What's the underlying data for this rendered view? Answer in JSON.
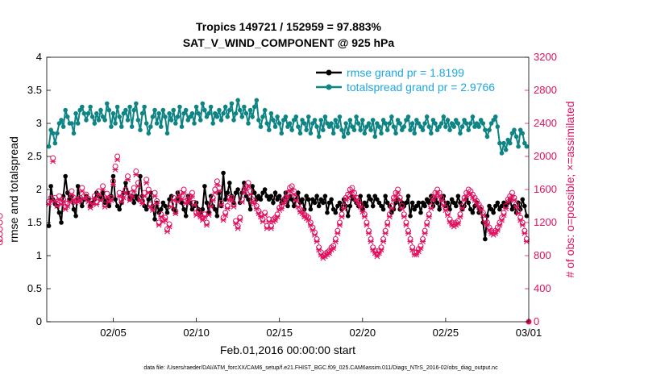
{
  "chart_data": {
    "type": "line",
    "title": "Tropics 149721 / 152959 = 97.883%",
    "subtitle": "SAT_V_WIND_COMPONENT @ 925 hPa",
    "xlabel": "Feb.01,2016 00:00:00 start",
    "ylabel": "rmse and totalspread",
    "y2label": "# of obs: o=possible; ×=assimilated",
    "footer": "data file: /Users/raeder/DAI/ATM_forcXX/CAM6_setup/f.e21.FHIST_BGC.f09_025.CAM6assim.011/Diags_NTrS_2016-02/obs_diag_output.nc",
    "xlim": [
      1,
      30
    ],
    "ylim": [
      0,
      4
    ],
    "y2lim": [
      0,
      3200
    ],
    "xticks": [
      5,
      10,
      15,
      20,
      25,
      30
    ],
    "xtick_labels": [
      "02/05",
      "02/10",
      "02/15",
      "02/20",
      "02/25",
      "03/01"
    ],
    "yticks": [
      0,
      0.5,
      1,
      1.5,
      2,
      2.5,
      3,
      3.5,
      4
    ],
    "ytick_labels": [
      "0",
      "0.5",
      "1",
      "1.5",
      "2",
      "2.5",
      "3",
      "3.5",
      "4"
    ],
    "y2ticks": [
      0,
      400,
      800,
      1200,
      1600,
      2000,
      2400,
      2800,
      3200
    ],
    "y2tick_labels": [
      "0",
      "400",
      "800",
      "1200",
      "1600",
      "2000",
      "2400",
      "2800",
      "3200"
    ],
    "x": [
      1.125,
      1.25,
      1.375,
      1.5,
      1.625,
      1.75,
      1.875,
      2.0,
      2.125,
      2.25,
      2.375,
      2.5,
      2.625,
      2.75,
      2.875,
      3.0,
      3.125,
      3.25,
      3.375,
      3.5,
      3.625,
      3.75,
      3.875,
      4.0,
      4.125,
      4.25,
      4.375,
      4.5,
      4.625,
      4.75,
      4.875,
      5.0,
      5.125,
      5.25,
      5.375,
      5.5,
      5.625,
      5.75,
      5.875,
      6.0,
      6.125,
      6.25,
      6.375,
      6.5,
      6.625,
      6.75,
      6.875,
      7.0,
      7.125,
      7.25,
      7.375,
      7.5,
      7.625,
      7.75,
      7.875,
      8.0,
      8.125,
      8.25,
      8.375,
      8.5,
      8.625,
      8.75,
      8.875,
      9.0,
      9.125,
      9.25,
      9.375,
      9.5,
      9.625,
      9.75,
      9.875,
      10.0,
      10.125,
      10.25,
      10.375,
      10.5,
      10.625,
      10.75,
      10.875,
      11.0,
      11.125,
      11.25,
      11.375,
      11.5,
      11.625,
      11.75,
      11.875,
      12.0,
      12.125,
      12.25,
      12.375,
      12.5,
      12.625,
      12.75,
      12.875,
      13.0,
      13.125,
      13.25,
      13.375,
      13.5,
      13.625,
      13.75,
      13.875,
      14.0,
      14.125,
      14.25,
      14.375,
      14.5,
      14.625,
      14.75,
      14.875,
      15.0,
      15.125,
      15.25,
      15.375,
      15.5,
      15.625,
      15.75,
      15.875,
      16.0,
      16.125,
      16.25,
      16.375,
      16.5,
      16.625,
      16.75,
      16.875,
      17.0,
      17.125,
      17.25,
      17.375,
      17.5,
      17.625,
      17.75,
      17.875,
      18.0,
      18.125,
      18.25,
      18.375,
      18.5,
      18.625,
      18.75,
      18.875,
      19.0,
      19.125,
      19.25,
      19.375,
      19.5,
      19.625,
      19.75,
      19.875,
      20.0,
      20.125,
      20.25,
      20.375,
      20.5,
      20.625,
      20.75,
      20.875,
      21.0,
      21.125,
      21.25,
      21.375,
      21.5,
      21.625,
      21.75,
      21.875,
      22.0,
      22.125,
      22.25,
      22.375,
      22.5,
      22.625,
      22.75,
      22.875,
      23.0,
      23.125,
      23.25,
      23.375,
      23.5,
      23.625,
      23.75,
      23.875,
      24.0,
      24.125,
      24.25,
      24.375,
      24.5,
      24.625,
      24.75,
      24.875,
      25.0,
      25.125,
      25.25,
      25.375,
      25.5,
      25.625,
      25.75,
      25.875,
      26.0,
      26.125,
      26.25,
      26.375,
      26.5,
      26.625,
      26.75,
      26.875,
      27.0,
      27.125,
      27.25,
      27.375,
      27.5,
      27.625,
      27.75,
      27.875,
      28.0,
      28.125,
      28.25,
      28.375,
      28.5,
      28.625,
      28.75,
      28.875,
      29.0,
      29.125,
      29.25,
      29.375,
      29.5,
      29.625,
      29.75,
      29.875
    ],
    "series": [
      {
        "name": "rmse grand pr = 1.8199",
        "color": "#000000",
        "axis": "left",
        "values": [
          1.45,
          2.05,
          1.85,
          1.78,
          1.75,
          1.65,
          1.5,
          1.9,
          2.2,
          1.95,
          1.85,
          1.9,
          1.7,
          1.6,
          2.05,
          1.85,
          1.75,
          1.85,
          1.9,
          1.85,
          1.75,
          1.8,
          1.85,
          1.95,
          1.9,
          1.85,
          1.95,
          1.8,
          1.85,
          1.75,
          1.9,
          2.2,
          1.85,
          1.75,
          1.7,
          1.8,
          1.95,
          2.1,
          1.95,
          1.85,
          1.9,
          1.8,
          1.9,
          1.85,
          2.2,
          1.9,
          1.75,
          1.7,
          1.85,
          1.95,
          1.75,
          1.55,
          1.8,
          1.65,
          1.7,
          1.8,
          1.75,
          1.65,
          1.85,
          1.9,
          1.7,
          1.65,
          1.95,
          1.85,
          1.8,
          1.7,
          1.6,
          1.9,
          1.8,
          1.7,
          1.75,
          1.8,
          1.7,
          1.65,
          1.7,
          2.05,
          1.8,
          1.65,
          1.9,
          1.75,
          1.7,
          1.6,
          1.95,
          1.75,
          2.25,
          1.85,
          1.95,
          2.1,
          1.9,
          1.8,
          1.95,
          2.0,
          1.8,
          1.95,
          2.1,
          1.9,
          1.85,
          1.7,
          2.05,
          1.95,
          1.85,
          1.9,
          1.85,
          1.95,
          2.0,
          1.9,
          1.85,
          1.9,
          1.8,
          1.95,
          1.85,
          1.9,
          1.8,
          1.85,
          1.95,
          1.75,
          1.9,
          1.85,
          1.75,
          1.85,
          1.95,
          1.8,
          1.85,
          1.7,
          1.9,
          1.85,
          1.7,
          1.85,
          1.8,
          1.9,
          1.75,
          1.85,
          1.8,
          1.9,
          1.65,
          1.8,
          1.85,
          1.7,
          1.65,
          1.75,
          1.8,
          1.7,
          1.85,
          1.75,
          1.6,
          1.75,
          1.9,
          1.85,
          1.8,
          1.75,
          1.9,
          1.7,
          1.8,
          1.75,
          1.9,
          1.85,
          1.75,
          1.9,
          1.85,
          1.8,
          1.75,
          1.7,
          1.9,
          1.8,
          1.75,
          1.65,
          1.7,
          1.8,
          1.85,
          1.7,
          1.8,
          1.75,
          1.8,
          1.9,
          1.6,
          1.8,
          1.7,
          1.75,
          1.8,
          1.65,
          1.8,
          1.75,
          1.85,
          1.8,
          1.9,
          1.75,
          1.85,
          1.8,
          1.7,
          1.85,
          1.9,
          1.75,
          1.8,
          1.7,
          1.85,
          1.8,
          1.75,
          1.9,
          1.8,
          1.7,
          1.75,
          1.85,
          1.8,
          1.7,
          1.65,
          1.75,
          1.8,
          1.65,
          1.7,
          1.5,
          1.25,
          1.6,
          1.75,
          1.7,
          1.65,
          1.75,
          1.8,
          1.7,
          1.75,
          1.8,
          1.75,
          1.8,
          1.85,
          1.7,
          1.75,
          1.65,
          1.8,
          1.7,
          1.85,
          1.75,
          1.6
        ]
      },
      {
        "name": "totalspread grand pr = 2.9766",
        "color": "#0e8584",
        "axis": "left",
        "values": [
          2.65,
          2.9,
          2.85,
          2.7,
          2.85,
          3.0,
          3.05,
          2.95,
          3.2,
          3.1,
          3.0,
          3.0,
          2.85,
          3.15,
          3.0,
          3.2,
          3.25,
          3.15,
          3.05,
          3.15,
          3.25,
          3.1,
          3.0,
          3.15,
          3.05,
          3.2,
          3.1,
          3.05,
          3.3,
          3.2,
          2.95,
          3.15,
          3.0,
          3.25,
          3.1,
          2.95,
          3.15,
          3.2,
          3.05,
          3.25,
          2.95,
          3.2,
          3.3,
          3.05,
          2.9,
          3.15,
          3.25,
          3.0,
          2.85,
          2.95,
          3.1,
          3.2,
          3.0,
          3.15,
          2.95,
          3.2,
          3.1,
          2.85,
          3.15,
          3.05,
          3.2,
          3.0,
          3.1,
          3.25,
          2.95,
          3.15,
          3.2,
          3.05,
          3.1,
          3.15,
          3.0,
          3.25,
          3.15,
          3.05,
          3.3,
          3.2,
          3.1,
          3.15,
          3.25,
          3.0,
          3.15,
          3.1,
          3.2,
          3.05,
          3.15,
          3.25,
          3.1,
          3.2,
          3.3,
          3.05,
          3.15,
          3.35,
          3.2,
          3.1,
          3.25,
          3.15,
          3.0,
          3.2,
          3.1,
          3.25,
          3.35,
          3.05,
          2.95,
          3.1,
          3.2,
          3.0,
          2.9,
          3.15,
          3.05,
          2.95,
          3.1,
          3.0,
          2.85,
          3.05,
          3.1,
          2.95,
          3.0,
          2.9,
          3.05,
          3.1,
          2.95,
          2.85,
          3.05,
          3.0,
          2.9,
          3.1,
          2.85,
          3.0,
          3.05,
          2.95,
          2.8,
          3.05,
          2.9,
          3.1,
          3.0,
          2.95,
          3.0,
          2.85,
          3.05,
          2.95,
          3.1,
          2.9,
          2.8,
          3.0,
          2.85,
          3.05,
          2.95,
          2.9,
          3.1,
          3.0,
          2.9,
          3.05,
          2.85,
          2.95,
          3.0,
          2.9,
          3.05,
          2.8,
          3.0,
          2.95,
          2.85,
          3.05,
          3.0,
          2.9,
          3.0,
          3.1,
          2.95,
          2.85,
          3.05,
          3.0,
          2.9,
          2.95,
          3.05,
          3.1,
          2.9,
          3.0,
          2.85,
          3.05,
          3.0,
          2.95,
          2.9,
          3.0,
          3.1,
          2.95,
          2.85,
          3.05,
          3.0,
          2.9,
          2.95,
          3.0,
          3.1,
          2.95,
          3.05,
          2.9,
          3.0,
          2.95,
          3.05,
          3.0,
          2.85,
          2.95,
          3.05,
          3.0,
          2.9,
          3.0,
          3.1,
          2.95,
          3.0,
          2.95,
          3.05,
          3.0,
          2.9,
          2.8,
          2.9,
          3.0,
          3.05,
          3.1,
          2.95,
          2.7,
          2.55,
          2.7,
          2.6,
          2.75,
          2.7,
          2.85,
          2.9,
          2.8,
          2.65,
          2.9,
          2.85,
          2.7,
          2.65
        ]
      }
    ],
    "obs": {
      "possible": [
        1450,
        1500,
        1980,
        1500,
        1420,
        1520,
        1450,
        1480,
        1390,
        1430,
        1480,
        1580,
        1500,
        1470,
        1480,
        1500,
        1620,
        1520,
        1540,
        1490,
        1400,
        1460,
        1520,
        1450,
        1580,
        1500,
        1640,
        1420,
        1550,
        1480,
        1500,
        1700,
        1880,
        2000,
        1560,
        1480,
        1540,
        1600,
        1760,
        1500,
        1560,
        1620,
        1820,
        1680,
        1500,
        1460,
        1560,
        1720,
        1600,
        1420,
        1380,
        1560,
        1460,
        1200,
        1300,
        1240,
        1260,
        1120,
        1180,
        1420,
        1500,
        1340,
        1480,
        1560,
        1520,
        1600,
        1460,
        1480,
        1520,
        1560,
        1440,
        1320,
        1340,
        1300,
        1260,
        1300,
        1200,
        1320,
        1420,
        1500,
        1600,
        1700,
        1620,
        1440,
        1260,
        1320,
        1400,
        1500,
        1500,
        1420,
        1220,
        1160,
        1260,
        1480,
        1600,
        1640,
        1680,
        1580,
        1480,
        1460,
        1400,
        1340,
        1300,
        1240,
        1320,
        1160,
        1240,
        1160,
        1240,
        1260,
        1300,
        1380,
        1400,
        1460,
        1500,
        1560,
        1620,
        1640,
        1580,
        1500,
        1420,
        1360,
        1340,
        1300,
        1280,
        1260,
        1200,
        1140,
        1080,
        1000,
        900,
        840,
        800,
        820,
        840,
        860,
        900,
        920,
        1000,
        1100,
        1200,
        1300,
        1400,
        1500,
        1540,
        1600,
        1620,
        1560,
        1500,
        1460,
        1420,
        1360,
        1300,
        1200,
        1100,
        1000,
        900,
        860,
        820,
        860,
        900,
        1000,
        1100,
        1200,
        1300,
        1400,
        1500,
        1560,
        1600,
        1500,
        1400,
        1300,
        1200,
        1100,
        1000,
        900,
        840,
        840,
        880,
        920,
        1000,
        1100,
        1200,
        1300,
        1400,
        1500,
        1560,
        1600,
        1560,
        1500,
        1440,
        1380,
        1320,
        1240,
        1200,
        1180,
        1200,
        1220,
        1300,
        1400,
        1500,
        1560,
        1600,
        1580,
        1540,
        1500,
        1460,
        1420,
        1380,
        1320,
        1240,
        1200,
        1140,
        1100,
        1080,
        1100,
        1140,
        1200,
        1260,
        1320,
        1400,
        1480,
        1520,
        1560,
        1500,
        1420,
        1340,
        1260,
        1200,
        1100,
        1000,
        960,
        1000,
        1060,
        1120,
        1200,
        1280
      ],
      "assimilated": [
        1420,
        1460,
        1940,
        1460,
        1400,
        1480,
        1420,
        1450,
        1360,
        1400,
        1450,
        1540,
        1470,
        1440,
        1450,
        1470,
        1580,
        1490,
        1500,
        1450,
        1380,
        1430,
        1490,
        1420,
        1540,
        1470,
        1600,
        1390,
        1510,
        1450,
        1470,
        1660,
        1840,
        1960,
        1520,
        1450,
        1500,
        1560,
        1720,
        1470,
        1520,
        1580,
        1780,
        1640,
        1470,
        1430,
        1520,
        1680,
        1560,
        1390,
        1350,
        1520,
        1430,
        1170,
        1270,
        1210,
        1230,
        1090,
        1150,
        1390,
        1470,
        1310,
        1450,
        1520,
        1480,
        1560,
        1430,
        1450,
        1490,
        1520,
        1410,
        1290,
        1310,
        1270,
        1230,
        1270,
        1170,
        1290,
        1390,
        1470,
        1560,
        1660,
        1580,
        1410,
        1230,
        1290,
        1370,
        1470,
        1470,
        1390,
        1190,
        1130,
        1230,
        1450,
        1560,
        1600,
        1640,
        1540,
        1450,
        1430,
        1370,
        1310,
        1270,
        1210,
        1290,
        1130,
        1210,
        1130,
        1210,
        1230,
        1270,
        1350,
        1370,
        1430,
        1470,
        1520,
        1580,
        1600,
        1540,
        1470,
        1390,
        1330,
        1310,
        1270,
        1250,
        1230,
        1170,
        1110,
        1050,
        970,
        870,
        810,
        770,
        790,
        810,
        830,
        870,
        890,
        970,
        1070,
        1170,
        1270,
        1370,
        1470,
        1500,
        1560,
        1580,
        1520,
        1470,
        1430,
        1390,
        1330,
        1270,
        1170,
        1070,
        970,
        870,
        830,
        790,
        830,
        870,
        970,
        1070,
        1170,
        1270,
        1370,
        1470,
        1520,
        1560,
        1470,
        1370,
        1270,
        1170,
        1070,
        970,
        870,
        810,
        810,
        850,
        890,
        970,
        1070,
        1170,
        1270,
        1370,
        1470,
        1520,
        1560,
        1520,
        1470,
        1410,
        1350,
        1290,
        1210,
        1170,
        1150,
        1170,
        1190,
        1270,
        1370,
        1470,
        1520,
        1560,
        1540,
        1500,
        1470,
        1430,
        1390,
        1350,
        1290,
        1210,
        1170,
        1110,
        1070,
        1050,
        1070,
        1110,
        1170,
        1230,
        1290,
        1370,
        1450,
        1480,
        1520,
        1470,
        1390,
        1310,
        1230,
        1170,
        1070,
        970,
        930,
        970,
        1030,
        1090,
        1170,
        1250
      ]
    }
  }
}
